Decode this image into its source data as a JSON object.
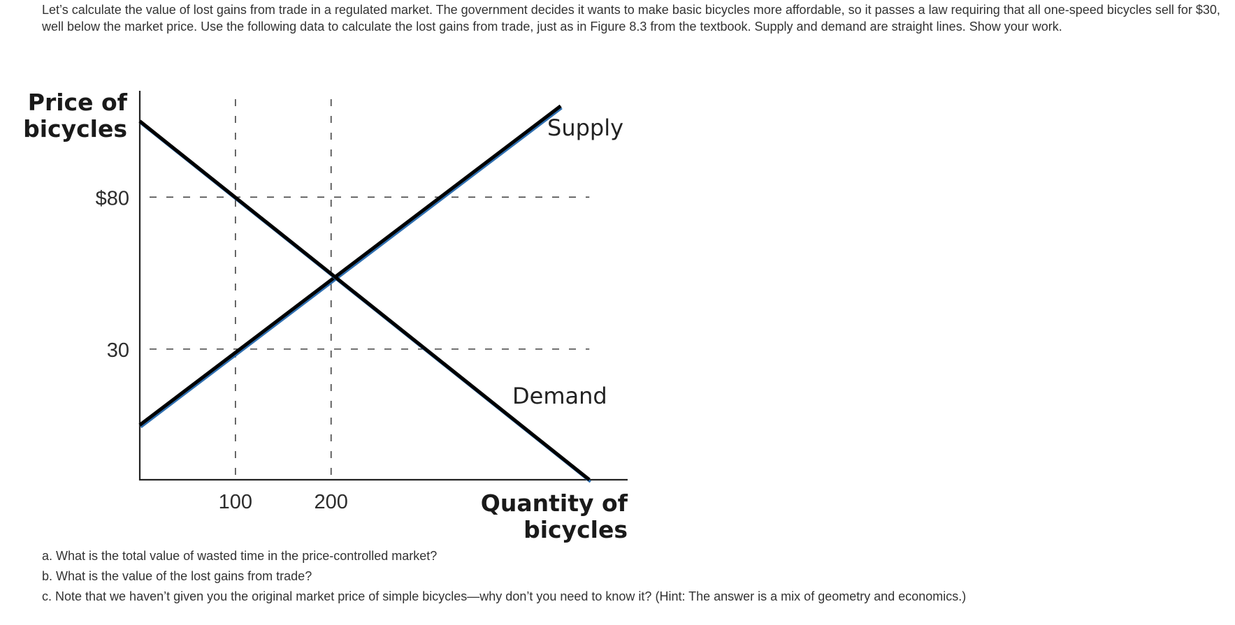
{
  "problem": {
    "intro": "Let’s calculate the value of lost gains from trade in a regulated market. The government decides it wants to make basic bicycles more affordable, so it passes a law requiring that all one-speed bicycles sell for $30, well below the market price. Use the following data to calculate the lost gains from trade, just as in Figure 8.3 from the textbook. Supply and demand are straight lines. Show your work.",
    "questions": [
      "a. What is the total value of wasted time in the price-controlled market?",
      "b. What is the value of the lost gains from trade?",
      "c. Note that we haven’t given you the original market price of simple bicycles—why don’t you need to know it? (Hint: The answer is a mix of geometry and economics.)"
    ]
  },
  "chart_data": {
    "type": "line",
    "ylabel_line1": "Price of",
    "ylabel_line2": "bicycles",
    "xlabel_line1": "Quantity of",
    "xlabel_line2": "bicycles",
    "x_ticks": [
      {
        "value": 100,
        "label": "100"
      },
      {
        "value": 200,
        "label": "200"
      }
    ],
    "y_ticks": [
      {
        "value": 80,
        "label": "$80"
      },
      {
        "value": 30,
        "label": "30"
      }
    ],
    "xlim": [
      0,
      510
    ],
    "ylim": [
      -13,
      115
    ],
    "series": [
      {
        "name": "Supply",
        "x": [
          0,
          440
        ],
        "y": [
          5,
          110
        ],
        "color": "#000000",
        "edge_color": "#2f6fb0"
      },
      {
        "name": "Demand",
        "x": [
          0,
          470
        ],
        "y": [
          105,
          -13
        ],
        "color": "#000000",
        "edge_color": "#2f6fb0"
      }
    ],
    "guides": {
      "vertical": [
        100,
        200
      ],
      "horizontal": [
        80,
        30
      ],
      "horizontal_end": 470
    },
    "grid": false,
    "legend": "none"
  }
}
